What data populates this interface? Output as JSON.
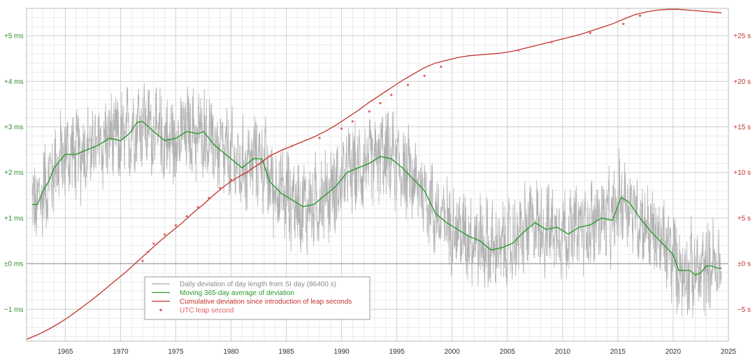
{
  "chart_data": {
    "type": "line",
    "x_range": [
      1961.5,
      2025
    ],
    "x_ticks": [
      "1965",
      "1970",
      "1975",
      "1980",
      "1985",
      "1990",
      "1995",
      "2000",
      "2005",
      "2010",
      "2015",
      "2020",
      "2025"
    ],
    "left_axis": {
      "unit": "ms",
      "range": [
        -1.7,
        5.6
      ],
      "ticks": [
        {
          "v": 5,
          "label": "+5 ms"
        },
        {
          "v": 4,
          "label": "+4 ms"
        },
        {
          "v": 3,
          "label": "+3 ms"
        },
        {
          "v": 2,
          "label": "+2 ms"
        },
        {
          "v": 1,
          "label": "+1 ms"
        },
        {
          "v": 0,
          "label": "±0 ms"
        },
        {
          "v": -1,
          "label": "−1 ms"
        }
      ]
    },
    "right_axis": {
      "unit": "s",
      "range": [
        -8.5,
        28
      ],
      "ticks": [
        {
          "v": 25,
          "label": "+25 s"
        },
        {
          "v": 20,
          "label": "+20 s"
        },
        {
          "v": 15,
          "label": "+15 s"
        },
        {
          "v": 10,
          "label": "+10 s"
        },
        {
          "v": 5,
          "label": "+5 s"
        },
        {
          "v": 0,
          "label": "±0 s"
        },
        {
          "v": -5,
          "label": "−5 s"
        }
      ]
    },
    "grid": true,
    "legend_position": "bottom-left",
    "legend": [
      {
        "label": "Daily deviation of day length from SI day (86400 s)",
        "color": "#a6a6a6",
        "kind": "line"
      },
      {
        "label": "Moving 365-day average of deviation",
        "color": "#2b9a2b",
        "kind": "line"
      },
      {
        "label": "Cumulative deviation since introduction of leap seconds",
        "color": "#c0332c",
        "kind": "line"
      },
      {
        "label": "UTC leap second",
        "color": "#e06060",
        "kind": "dot"
      }
    ],
    "series": [
      {
        "name": "Moving 365-day average of deviation",
        "axis": "left",
        "color": "#2b9a2b",
        "x": [
          1962,
          1962.5,
          1963,
          1963.5,
          1964,
          1965,
          1966,
          1967,
          1968,
          1969,
          1970,
          1970.8,
          1971.5,
          1972,
          1973,
          1974,
          1975,
          1976,
          1977,
          1977.5,
          1978.5,
          1980,
          1981,
          1982,
          1982.8,
          1983.5,
          1984.5,
          1985.5,
          1986.5,
          1987.5,
          1988.5,
          1989.5,
          1990.5,
          1991.5,
          1992.5,
          1993.5,
          1994.5,
          1995.5,
          1996.5,
          1997.5,
          1998.5,
          1999.5,
          2000.5,
          2001.5,
          2002.5,
          2003.5,
          2004.5,
          2005.5,
          2006.5,
          2007.5,
          2008.5,
          2009.5,
          2010.5,
          2011.5,
          2012.5,
          2013.5,
          2014.5,
          2015.3,
          2016,
          2017,
          2018,
          2019,
          2020,
          2020.5,
          2021,
          2021.5,
          2022,
          2022.5,
          2023,
          2023.5,
          2024,
          2024.4
        ],
        "values": [
          1.3,
          1.3,
          1.6,
          1.8,
          2.1,
          2.4,
          2.4,
          2.5,
          2.6,
          2.75,
          2.7,
          2.85,
          3.1,
          3.12,
          2.9,
          2.7,
          2.75,
          2.9,
          2.85,
          2.9,
          2.6,
          2.3,
          2.1,
          2.3,
          2.3,
          1.8,
          1.55,
          1.4,
          1.25,
          1.3,
          1.5,
          1.7,
          2.0,
          2.1,
          2.2,
          2.35,
          2.3,
          2.1,
          1.85,
          1.6,
          1.1,
          0.9,
          0.75,
          0.6,
          0.5,
          0.3,
          0.35,
          0.45,
          0.7,
          0.9,
          0.75,
          0.8,
          0.65,
          0.8,
          0.85,
          1.0,
          0.95,
          1.45,
          1.35,
          1.0,
          0.7,
          0.45,
          0.2,
          -0.15,
          -0.15,
          -0.15,
          -0.25,
          -0.2,
          -0.05,
          -0.05,
          -0.1,
          -0.1
        ]
      },
      {
        "name": "Cumulative deviation since introduction of leap seconds",
        "axis": "right",
        "color": "#c0332c",
        "x": [
          1961.5,
          1962.5,
          1963.5,
          1964.5,
          1965.5,
          1966.5,
          1967.5,
          1968.5,
          1969.5,
          1970.5,
          1971.5,
          1972.5,
          1973.5,
          1974.5,
          1975.5,
          1976.5,
          1977.5,
          1978.5,
          1979.5,
          1980.5,
          1981.5,
          1982.5,
          1983.5,
          1984.5,
          1985.5,
          1986.5,
          1987.5,
          1988.5,
          1989.5,
          1990.5,
          1991.5,
          1992.5,
          1993.5,
          1994.5,
          1995.5,
          1996.5,
          1997.5,
          1998.5,
          1999.5,
          2000.5,
          2001.5,
          2002.5,
          2003.5,
          2004.5,
          2005.5,
          2006.5,
          2007.5,
          2008.5,
          2009.5,
          2010.5,
          2011.5,
          2012.5,
          2013.5,
          2014.5,
          2015.5,
          2016.5,
          2017.5,
          2018.5,
          2019.5,
          2020.5,
          2021.5,
          2022.5,
          2023.5,
          2024.4
        ],
        "values": [
          -8.3,
          -7.8,
          -7.2,
          -6.5,
          -5.7,
          -4.8,
          -3.9,
          -2.9,
          -1.9,
          -0.9,
          0.2,
          1.3,
          2.4,
          3.4,
          4.4,
          5.5,
          6.5,
          7.6,
          8.6,
          9.4,
          10.1,
          10.9,
          11.8,
          12.4,
          12.9,
          13.4,
          13.9,
          14.5,
          15.2,
          16.0,
          16.8,
          17.7,
          18.5,
          19.3,
          20.1,
          20.8,
          21.5,
          22.0,
          22.3,
          22.6,
          22.8,
          22.9,
          23.0,
          23.1,
          23.3,
          23.6,
          23.9,
          24.2,
          24.5,
          24.8,
          25.1,
          25.5,
          25.9,
          26.3,
          26.8,
          27.3,
          27.6,
          27.8,
          27.9,
          27.9,
          27.8,
          27.7,
          27.6,
          27.5
        ]
      },
      {
        "name": "UTC leap second",
        "axis": "right",
        "color": "#e06060",
        "kind": "points",
        "x": [
          1972.0,
          1972.5,
          1973.0,
          1974.0,
          1975.0,
          1976.0,
          1977.0,
          1978.0,
          1979.0,
          1980.0,
          1981.5,
          1982.5,
          1983.5,
          1985.5,
          1988.0,
          1990.0,
          1991.0,
          1992.5,
          1993.5,
          1994.5,
          1996.0,
          1997.5,
          1999.0,
          2006.0,
          2009.0,
          2012.5,
          2015.5,
          2017.0
        ],
        "values": [
          0.3,
          1.3,
          2.2,
          3.2,
          4.2,
          5.2,
          6.2,
          7.2,
          8.3,
          9.2,
          10.0,
          10.9,
          11.8,
          12.9,
          13.8,
          14.8,
          15.6,
          16.7,
          17.6,
          18.5,
          19.6,
          20.6,
          21.6,
          23.4,
          24.3,
          25.3,
          26.3,
          27.2
        ]
      },
      {
        "name": "Daily deviation of day length from SI day (86400 s)",
        "axis": "left",
        "color": "#a6a6a6",
        "kind": "noisy",
        "note_band_ms": 0.9
      }
    ]
  }
}
